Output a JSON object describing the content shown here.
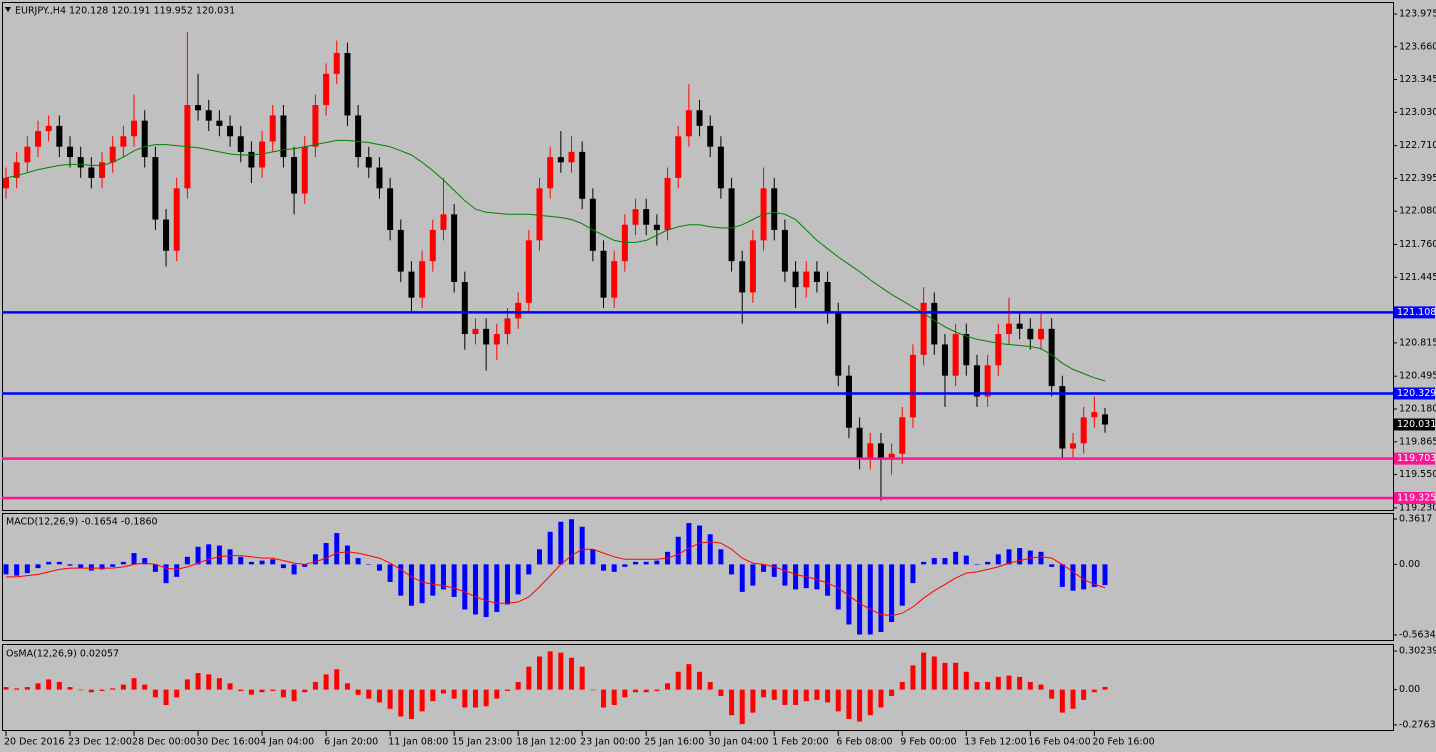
{
  "chart_data": [
    {
      "type": "candlestick",
      "title": "EURJPY.,H4  120.128 120.191 119.952 120.031",
      "categories": [
        "20 Dec 2016",
        null,
        null,
        null,
        null,
        null,
        "23 Dec 12:00",
        null,
        null,
        null,
        null,
        null,
        "28 Dec 00:00",
        null,
        null,
        null,
        null,
        null,
        "30 Dec 16:00",
        null,
        null,
        null,
        null,
        null,
        "4 Jan 04:00",
        null,
        null,
        null,
        null,
        null,
        "6 Jan 20:00",
        null,
        null,
        null,
        null,
        null,
        "11 Jan 08:00",
        null,
        null,
        null,
        null,
        null,
        "15 Jan 23:00",
        null,
        null,
        null,
        null,
        null,
        "18 Jan 12:00",
        null,
        null,
        null,
        null,
        null,
        "23 Jan 00:00",
        null,
        null,
        null,
        null,
        null,
        "25 Jan 16:00",
        null,
        null,
        null,
        null,
        null,
        "30 Jan 04:00",
        null,
        null,
        null,
        null,
        null,
        "1 Feb 20:00",
        null,
        null,
        null,
        null,
        null,
        "6 Feb 08:00",
        null,
        null,
        null,
        null,
        null,
        "9 Feb 00:00",
        null,
        null,
        null,
        null,
        null,
        "13 Feb 12:00",
        null,
        null,
        null,
        null,
        null,
        "16 Feb 04:00",
        null,
        null,
        null,
        null,
        null,
        "20 Feb 16:00",
        null
      ],
      "ohlc": [
        [
          122.3,
          122.5,
          122.2,
          122.4
        ],
        [
          122.4,
          122.65,
          122.3,
          122.55
        ],
        [
          122.55,
          122.8,
          122.45,
          122.7
        ],
        [
          122.7,
          122.95,
          122.6,
          122.85
        ],
        [
          122.85,
          123.0,
          122.75,
          122.9
        ],
        [
          122.9,
          123.0,
          122.6,
          122.7
        ],
        [
          122.7,
          122.8,
          122.5,
          122.6
        ],
        [
          122.6,
          122.7,
          122.4,
          122.5
        ],
        [
          122.5,
          122.6,
          122.3,
          122.4
        ],
        [
          122.4,
          122.65,
          122.3,
          122.55
        ],
        [
          122.55,
          122.8,
          122.45,
          122.7
        ],
        [
          122.7,
          122.9,
          122.6,
          122.8
        ],
        [
          122.8,
          123.2,
          122.7,
          122.95
        ],
        [
          122.95,
          123.05,
          122.5,
          122.6
        ],
        [
          122.6,
          122.7,
          121.9,
          122.0
        ],
        [
          122.0,
          122.1,
          121.55,
          121.7
        ],
        [
          121.7,
          122.4,
          121.6,
          122.3
        ],
        [
          122.3,
          123.8,
          122.2,
          123.1
        ],
        [
          123.1,
          123.4,
          122.95,
          123.05
        ],
        [
          123.05,
          123.15,
          122.85,
          122.95
        ],
        [
          122.95,
          123.05,
          122.8,
          122.9
        ],
        [
          122.9,
          123.0,
          122.7,
          122.8
        ],
        [
          122.8,
          122.9,
          122.55,
          122.65
        ],
        [
          122.65,
          122.75,
          122.35,
          122.5
        ],
        [
          122.5,
          122.85,
          122.4,
          122.75
        ],
        [
          122.75,
          123.1,
          122.65,
          123.0
        ],
        [
          123.0,
          123.1,
          122.5,
          122.6
        ],
        [
          122.6,
          122.7,
          122.05,
          122.25
        ],
        [
          122.25,
          122.8,
          122.15,
          122.7
        ],
        [
          122.7,
          123.2,
          122.6,
          123.1
        ],
        [
          123.1,
          123.5,
          123.0,
          123.4
        ],
        [
          123.4,
          123.72,
          123.3,
          123.6
        ],
        [
          123.6,
          123.7,
          122.9,
          123.0
        ],
        [
          123.0,
          123.1,
          122.5,
          122.6
        ],
        [
          122.6,
          122.7,
          122.4,
          122.5
        ],
        [
          122.5,
          122.6,
          122.2,
          122.3
        ],
        [
          122.3,
          122.4,
          121.8,
          121.9
        ],
        [
          121.9,
          122.0,
          121.4,
          121.5
        ],
        [
          121.5,
          121.6,
          121.1,
          121.25
        ],
        [
          121.25,
          121.7,
          121.15,
          121.6
        ],
        [
          121.6,
          122.0,
          121.5,
          121.9
        ],
        [
          121.9,
          122.4,
          121.8,
          122.05
        ],
        [
          122.05,
          122.15,
          121.3,
          121.4
        ],
        [
          121.4,
          121.5,
          120.75,
          120.9
        ],
        [
          120.9,
          121.05,
          120.8,
          120.95
        ],
        [
          120.95,
          121.05,
          120.55,
          120.8
        ],
        [
          120.8,
          121.0,
          120.65,
          120.9
        ],
        [
          120.9,
          121.15,
          120.8,
          121.05
        ],
        [
          121.05,
          121.3,
          120.95,
          121.2
        ],
        [
          121.2,
          121.9,
          121.1,
          121.8
        ],
        [
          121.8,
          122.4,
          121.7,
          122.3
        ],
        [
          122.3,
          122.7,
          122.2,
          122.6
        ],
        [
          122.6,
          122.85,
          122.45,
          122.55
        ],
        [
          122.55,
          122.8,
          122.45,
          122.65
        ],
        [
          122.65,
          122.75,
          122.1,
          122.2
        ],
        [
          122.2,
          122.3,
          121.6,
          121.7
        ],
        [
          121.7,
          121.8,
          121.15,
          121.25
        ],
        [
          121.25,
          121.7,
          121.15,
          121.6
        ],
        [
          121.6,
          122.05,
          121.5,
          121.95
        ],
        [
          121.95,
          122.2,
          121.85,
          122.1
        ],
        [
          122.1,
          122.2,
          121.85,
          121.95
        ],
        [
          121.95,
          122.05,
          121.75,
          121.9
        ],
        [
          121.9,
          122.5,
          121.8,
          122.4
        ],
        [
          122.4,
          122.9,
          122.3,
          122.8
        ],
        [
          122.8,
          123.3,
          122.7,
          123.05
        ],
        [
          123.05,
          123.15,
          122.8,
          122.9
        ],
        [
          122.9,
          123.0,
          122.6,
          122.7
        ],
        [
          122.7,
          122.8,
          122.2,
          122.3
        ],
        [
          122.3,
          122.4,
          121.5,
          121.6
        ],
        [
          121.6,
          121.7,
          121.0,
          121.3
        ],
        [
          121.3,
          121.9,
          121.2,
          121.8
        ],
        [
          121.8,
          122.5,
          121.7,
          122.3
        ],
        [
          122.3,
          122.4,
          121.8,
          121.9
        ],
        [
          121.9,
          122.0,
          121.4,
          121.5
        ],
        [
          121.5,
          121.6,
          121.15,
          121.35
        ],
        [
          121.35,
          121.6,
          121.25,
          121.5
        ],
        [
          121.5,
          121.6,
          121.3,
          121.4
        ],
        [
          121.4,
          121.5,
          121.0,
          121.1
        ],
        [
          121.1,
          121.2,
          120.4,
          120.5
        ],
        [
          120.5,
          120.6,
          119.9,
          120.0
        ],
        [
          120.0,
          120.1,
          119.6,
          119.7
        ],
        [
          119.7,
          119.95,
          119.6,
          119.85
        ],
        [
          119.85,
          119.95,
          119.3,
          119.7
        ],
        [
          119.7,
          119.85,
          119.55,
          119.75
        ],
        [
          119.75,
          120.2,
          119.65,
          120.1
        ],
        [
          120.1,
          120.8,
          120.0,
          120.7
        ],
        [
          120.7,
          121.35,
          120.6,
          121.2
        ],
        [
          121.2,
          121.3,
          120.7,
          120.8
        ],
        [
          120.8,
          120.9,
          120.2,
          120.5
        ],
        [
          120.5,
          121.0,
          120.4,
          120.9
        ],
        [
          120.9,
          121.0,
          120.5,
          120.6
        ],
        [
          120.6,
          120.7,
          120.2,
          120.3
        ],
        [
          120.3,
          120.7,
          120.2,
          120.6
        ],
        [
          120.6,
          121.0,
          120.5,
          120.9
        ],
        [
          120.9,
          121.25,
          120.8,
          121.0
        ],
        [
          121.0,
          121.1,
          120.85,
          120.95
        ],
        [
          120.95,
          121.05,
          120.75,
          120.85
        ],
        [
          120.85,
          121.1,
          120.75,
          120.95
        ],
        [
          120.95,
          121.05,
          120.3,
          120.4
        ],
        [
          120.4,
          120.5,
          119.7,
          119.8
        ],
        [
          119.8,
          119.95,
          119.7,
          119.85
        ],
        [
          119.85,
          120.2,
          119.75,
          120.1
        ],
        [
          120.1,
          120.3,
          120.0,
          120.15
        ],
        [
          120.128,
          120.191,
          119.952,
          120.031
        ]
      ],
      "up_color": "#ff0000",
      "down_color": "#000000",
      "ma": {
        "color": "#008000",
        "values": [
          122.4,
          122.42,
          122.45,
          122.48,
          122.5,
          122.52,
          122.53,
          122.53,
          122.52,
          122.52,
          122.55,
          122.6,
          122.66,
          122.7,
          122.72,
          122.72,
          122.71,
          122.7,
          122.69,
          122.67,
          122.65,
          122.63,
          122.62,
          122.62,
          122.63,
          122.65,
          122.67,
          122.68,
          122.7,
          122.72,
          122.74,
          122.76,
          122.76,
          122.75,
          122.74,
          122.72,
          122.7,
          122.66,
          122.62,
          122.55,
          122.47,
          122.38,
          122.28,
          122.18,
          122.1,
          122.07,
          122.06,
          122.05,
          122.05,
          122.05,
          122.04,
          122.03,
          122.02,
          122.0,
          121.96,
          121.9,
          121.85,
          121.8,
          121.78,
          121.78,
          121.8,
          121.85,
          121.9,
          121.93,
          121.95,
          121.95,
          121.93,
          121.92,
          121.92,
          121.95,
          122.0,
          122.05,
          122.07,
          122.05,
          122.0,
          121.9,
          121.8,
          121.72,
          121.64,
          121.57,
          121.5,
          121.42,
          121.35,
          121.28,
          121.22,
          121.16,
          121.1,
          121.03,
          120.97,
          120.92,
          120.88,
          120.85,
          120.83,
          120.81,
          120.8,
          120.79,
          120.78,
          120.76,
          120.7,
          120.62,
          120.56,
          120.52,
          120.48,
          120.45
        ]
      },
      "levels": [
        {
          "value": 121.108,
          "color": "#0000ff"
        },
        {
          "value": 120.329,
          "color": "#0000ff"
        },
        {
          "value": 119.703,
          "color": "#ff1493"
        },
        {
          "value": 119.325,
          "color": "#ff1493"
        }
      ],
      "ylim": [
        119.2,
        124.09
      ],
      "yticks": [
        123.975,
        {
          "value": 123.66,
          "label": "123.660"
        },
        123.345,
        {
          "value": 123.03,
          "label": "123.030"
        },
        {
          "value": 122.71,
          "label": "122.710"
        },
        122.395,
        {
          "value": 122.08,
          "label": "122.080"
        },
        {
          "value": 121.76,
          "label": "121.760"
        },
        121.445,
        120.815,
        120.495,
        {
          "value": 120.18,
          "label": "120.180"
        },
        119.865,
        {
          "value": 119.55,
          "label": "119.550"
        },
        {
          "value": 119.23,
          "label": "119.230"
        }
      ]
    },
    {
      "type": "macd",
      "title": "MACD(12,26,9) -0.1654 -0.1860",
      "histogram": {
        "color": "#0000ff",
        "values": [
          -0.08,
          -0.09,
          -0.07,
          -0.03,
          0.02,
          0.02,
          -0.01,
          -0.03,
          -0.05,
          -0.04,
          -0.02,
          0.02,
          0.09,
          0.05,
          -0.06,
          -0.15,
          -0.1,
          0.06,
          0.14,
          0.16,
          0.15,
          0.12,
          0.06,
          0.02,
          0.03,
          0.04,
          -0.03,
          -0.08,
          -0.02,
          0.08,
          0.17,
          0.25,
          0.15,
          0.05,
          0.0,
          -0.05,
          -0.14,
          -0.25,
          -0.33,
          -0.31,
          -0.25,
          -0.2,
          -0.26,
          -0.36,
          -0.4,
          -0.42,
          -0.38,
          -0.32,
          -0.24,
          -0.08,
          0.12,
          0.26,
          0.34,
          0.36,
          0.3,
          0.12,
          -0.05,
          -0.06,
          -0.02,
          0.02,
          0.02,
          0.03,
          0.1,
          0.22,
          0.33,
          0.31,
          0.24,
          0.12,
          -0.08,
          -0.22,
          -0.17,
          -0.06,
          -0.1,
          -0.17,
          -0.2,
          -0.19,
          -0.2,
          -0.25,
          -0.36,
          -0.48,
          -0.56,
          -0.56,
          -0.54,
          -0.46,
          -0.33,
          -0.15,
          0.02,
          0.05,
          0.05,
          0.1,
          0.07,
          0.0,
          0.02,
          0.08,
          0.12,
          0.13,
          0.11,
          0.1,
          -0.02,
          -0.18,
          -0.21,
          -0.2,
          -0.18,
          -0.1654
        ]
      },
      "signal": {
        "color": "#ff0000",
        "values": [
          -0.1,
          -0.1,
          -0.09,
          -0.08,
          -0.06,
          -0.04,
          -0.03,
          -0.03,
          -0.03,
          -0.03,
          -0.03,
          -0.02,
          0.0,
          0.01,
          0.0,
          -0.03,
          -0.04,
          -0.02,
          0.01,
          0.04,
          0.06,
          0.07,
          0.07,
          0.06,
          0.05,
          0.05,
          0.03,
          0.01,
          0.0,
          0.02,
          0.05,
          0.09,
          0.1,
          0.09,
          0.07,
          0.05,
          0.01,
          -0.04,
          -0.1,
          -0.14,
          -0.16,
          -0.17,
          -0.19,
          -0.22,
          -0.26,
          -0.29,
          -0.31,
          -0.31,
          -0.3,
          -0.26,
          -0.18,
          -0.09,
          0.0,
          0.07,
          0.12,
          0.12,
          0.09,
          0.06,
          0.04,
          0.04,
          0.04,
          0.04,
          0.05,
          0.08,
          0.13,
          0.17,
          0.18,
          0.17,
          0.12,
          0.05,
          0.01,
          0.0,
          -0.02,
          -0.05,
          -0.08,
          -0.1,
          -0.12,
          -0.15,
          -0.19,
          -0.25,
          -0.31,
          -0.36,
          -0.4,
          -0.41,
          -0.39,
          -0.34,
          -0.27,
          -0.21,
          -0.16,
          -0.11,
          -0.07,
          -0.06,
          -0.04,
          -0.02,
          0.01,
          0.03,
          0.05,
          0.06,
          0.05,
          0.0,
          -0.06,
          -0.12,
          -0.16,
          -0.186
        ]
      },
      "ylim": [
        -0.612,
        0.41
      ],
      "yticks": [
        0.3617,
        {
          "value": 0,
          "label": "0.00"
        },
        -0.5634
      ]
    },
    {
      "type": "osma",
      "title": "OsMA(12,26,9) 0.02057",
      "color": "#ff0000",
      "values": [
        0.02,
        0.01,
        0.02,
        0.05,
        0.08,
        0.06,
        0.02,
        0.0,
        -0.02,
        -0.01,
        0.01,
        0.04,
        0.09,
        0.04,
        -0.06,
        -0.12,
        -0.06,
        0.08,
        0.13,
        0.12,
        0.09,
        0.05,
        -0.01,
        -0.04,
        -0.02,
        -0.01,
        -0.06,
        -0.09,
        -0.02,
        0.06,
        0.12,
        0.16,
        0.05,
        -0.04,
        -0.07,
        -0.1,
        -0.15,
        -0.21,
        -0.23,
        -0.17,
        -0.09,
        -0.03,
        -0.07,
        -0.14,
        -0.14,
        -0.13,
        -0.07,
        -0.01,
        0.06,
        0.18,
        0.26,
        0.3,
        0.29,
        0.25,
        0.18,
        0.0,
        -0.14,
        -0.12,
        -0.06,
        -0.02,
        -0.02,
        -0.01,
        0.05,
        0.14,
        0.2,
        0.14,
        0.06,
        -0.05,
        -0.2,
        -0.27,
        -0.18,
        -0.06,
        -0.08,
        -0.12,
        -0.12,
        -0.09,
        -0.08,
        -0.1,
        -0.17,
        -0.23,
        -0.25,
        -0.2,
        -0.14,
        -0.05,
        0.06,
        0.19,
        0.29,
        0.26,
        0.21,
        0.21,
        0.14,
        0.06,
        0.06,
        0.1,
        0.11,
        0.1,
        0.06,
        0.04,
        -0.07,
        -0.18,
        -0.15,
        -0.08,
        -0.02,
        0.02057
      ],
      "ylim": [
        -0.324,
        0.35
      ],
      "yticks": [
        0.30239,
        {
          "value": 0,
          "label": "0.00"
        },
        -0.2763
      ]
    }
  ]
}
